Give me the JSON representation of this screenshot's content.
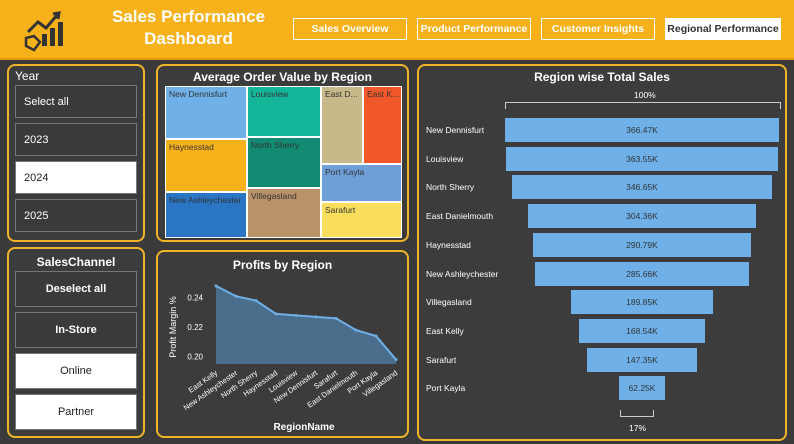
{
  "header": {
    "title_line1": "Sales Performance",
    "title_line2": "Dashboard",
    "logo_icon": "chart-hand-icon",
    "nav": [
      {
        "label": "Sales Overview",
        "active": false
      },
      {
        "label": "Product Performance",
        "active": false
      },
      {
        "label": "Customer Insights",
        "active": false
      },
      {
        "label": "Regional Performance",
        "active": true
      }
    ]
  },
  "year_slicer": {
    "title": "Year",
    "items": [
      {
        "label": "Select all",
        "selected": false
      },
      {
        "label": "2023",
        "selected": false
      },
      {
        "label": "2024",
        "selected": true
      },
      {
        "label": "2025",
        "selected": false
      }
    ]
  },
  "channel_slicer": {
    "title": "SalesChannel",
    "items": [
      {
        "label": "Deselect all",
        "selected": false
      },
      {
        "label": "In-Store",
        "selected": false
      },
      {
        "label": "Online",
        "selected": true
      },
      {
        "label": "Partner",
        "selected": true
      }
    ]
  },
  "treemap": {
    "title": "Average Order Value by Region",
    "cells": [
      {
        "label": "New Dennisfurt",
        "color": "#6fb0e8"
      },
      {
        "label": "Haynesstad",
        "color": "#f7b21b"
      },
      {
        "label": "New Ashleychester",
        "color": "#2a75c4"
      },
      {
        "label": "Louisview",
        "color": "#15b59a"
      },
      {
        "label": "North Sherry",
        "color": "#138a72"
      },
      {
        "label": "Villegasland",
        "color": "#b9926a"
      },
      {
        "label": "East D...",
        "color": "#c8b98a"
      },
      {
        "label": "East K...",
        "color": "#f0582a"
      },
      {
        "label": "Port Kayla",
        "color": "#6f9fd8"
      },
      {
        "label": "Sarafurt",
        "color": "#f9dd5c"
      }
    ]
  },
  "profits": {
    "title": "Profits by Region",
    "chart_data": {
      "type": "area",
      "categories": [
        "East Kelly",
        "New Ashleychester",
        "North Sherry",
        "Haynesstad",
        "Louisview",
        "New Dennisfurt",
        "Sarafurt",
        "East Danielmouth",
        "Port Kayla",
        "Villegasland"
      ],
      "values": [
        0.248,
        0.241,
        0.238,
        0.229,
        0.228,
        0.227,
        0.226,
        0.218,
        0.214,
        0.198
      ],
      "xlabel": "RegionName",
      "ylabel": "Profit Margin %",
      "yticks": [
        "0.24",
        "0.22",
        "0.20"
      ],
      "ylim": [
        0.195,
        0.252
      ]
    }
  },
  "funnel": {
    "title": "Region wise Total Sales",
    "top_label": "100%",
    "bottom_label": "17%",
    "chart_data": {
      "type": "bar",
      "categories": [
        "New Dennisfurt",
        "Louisview",
        "North Sherry",
        "East Danielmouth",
        "Haynesstad",
        "New Ashleychester",
        "Villegasland",
        "East Kelly",
        "Sarafurt",
        "Port Kayla"
      ],
      "values": [
        366.47,
        363.55,
        346.65,
        304.36,
        290.79,
        285.66,
        189.85,
        168.54,
        147.35,
        62.25
      ],
      "labels": [
        "366.47K",
        "363.55K",
        "346.65K",
        "304.36K",
        "290.79K",
        "285.66K",
        "189.85K",
        "168.54K",
        "147.35K",
        "62.25K"
      ]
    }
  }
}
